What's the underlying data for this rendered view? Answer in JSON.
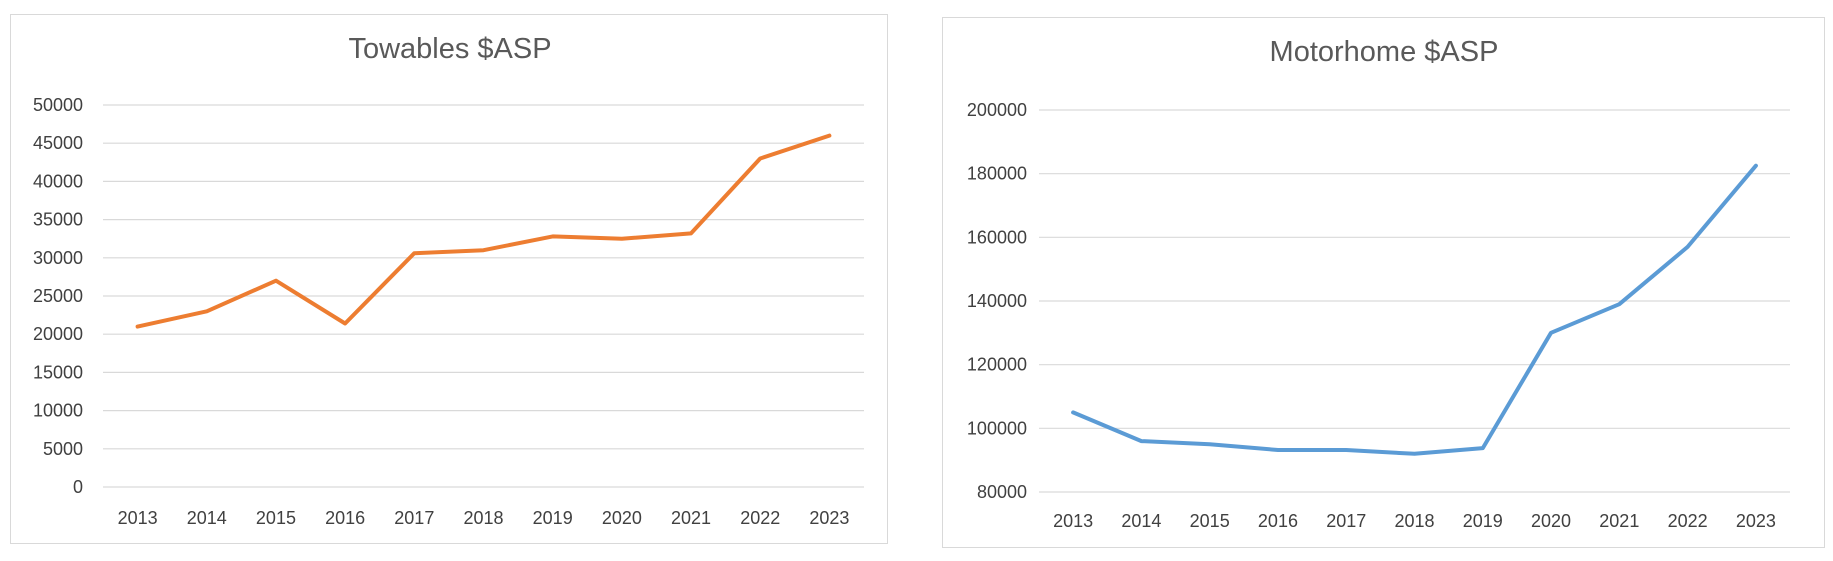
{
  "chart_data": [
    {
      "type": "line",
      "title": "Towables $ASP",
      "xlabel": "",
      "ylabel": "",
      "categories": [
        "2013",
        "2014",
        "2015",
        "2016",
        "2017",
        "2018",
        "2019",
        "2020",
        "2021",
        "2022",
        "2023"
      ],
      "series": [
        {
          "values": [
            21000,
            23000,
            27000,
            21400,
            30600,
            31000,
            32800,
            32500,
            33200,
            43000,
            46000
          ]
        }
      ],
      "ylim": [
        0,
        50000
      ],
      "yticks": [
        0,
        5000,
        10000,
        15000,
        20000,
        25000,
        30000,
        35000,
        40000,
        45000,
        50000
      ],
      "grid": true,
      "color": "#ed7d31"
    },
    {
      "type": "line",
      "title": "Motorhome $ASP",
      "xlabel": "",
      "ylabel": "",
      "categories": [
        "2013",
        "2014",
        "2015",
        "2016",
        "2017",
        "2018",
        "2019",
        "2020",
        "2021",
        "2022",
        "2023"
      ],
      "series": [
        {
          "values": [
            105000,
            96000,
            95000,
            93200,
            93200,
            92000,
            93800,
            130000,
            139000,
            157000,
            182500
          ]
        }
      ],
      "ylim": [
        80000,
        200000
      ],
      "yticks": [
        80000,
        100000,
        120000,
        140000,
        160000,
        180000,
        200000
      ],
      "grid": true,
      "color": "#5b9bd5"
    }
  ]
}
